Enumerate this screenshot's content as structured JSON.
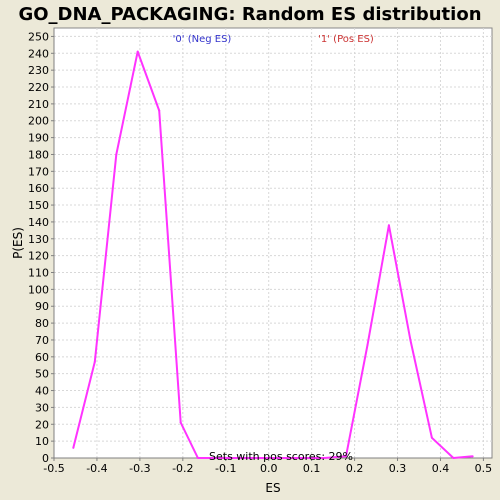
{
  "chart_data": {
    "type": "line",
    "title": "GO_DNA_PACKAGING: Random ES distribution",
    "xlabel": "ES",
    "ylabel": "P(ES)",
    "xlim": [
      -0.5,
      0.52
    ],
    "ylim": [
      0,
      255
    ],
    "x_ticks": [
      -0.5,
      -0.4,
      -0.3,
      -0.2,
      -0.1,
      0.0,
      0.1,
      0.2,
      0.3,
      0.4,
      0.5
    ],
    "x_tick_labels": [
      "-0.5",
      "-0.4",
      "-0.3",
      "-0.2",
      "-0.1",
      "0.0",
      "0.1",
      "0.2",
      "0.3",
      "0.4",
      "0.5"
    ],
    "y_ticks": [
      0,
      10,
      20,
      30,
      40,
      50,
      60,
      70,
      80,
      90,
      100,
      110,
      120,
      130,
      140,
      150,
      160,
      170,
      180,
      190,
      200,
      210,
      220,
      230,
      240,
      250
    ],
    "y_tick_labels": [
      "0",
      "10",
      "20",
      "30",
      "40",
      "50",
      "60",
      "70",
      "80",
      "90",
      "100",
      "110",
      "120",
      "130",
      "140",
      "150",
      "160",
      "170",
      "180",
      "190",
      "200",
      "210",
      "220",
      "230",
      "240",
      "250"
    ],
    "grid": true,
    "legend": [
      {
        "label": "'0' (Neg ES)",
        "color": "#3333cc"
      },
      {
        "label": "'1' (Pos ES)",
        "color": "#cc3333"
      }
    ],
    "annotation": "Sets with pos scores: 29%",
    "series": [
      {
        "color": "#ff33ff",
        "x": [
          -0.455,
          -0.405,
          -0.355,
          -0.305,
          -0.255,
          -0.205,
          -0.165,
          -0.135,
          0.13,
          0.18,
          0.23,
          0.28,
          0.33,
          0.38,
          0.43,
          0.475
        ],
        "y": [
          6,
          57,
          180,
          241,
          206,
          21,
          0,
          0,
          0,
          1,
          67,
          138,
          70,
          12,
          0,
          1
        ]
      }
    ]
  }
}
